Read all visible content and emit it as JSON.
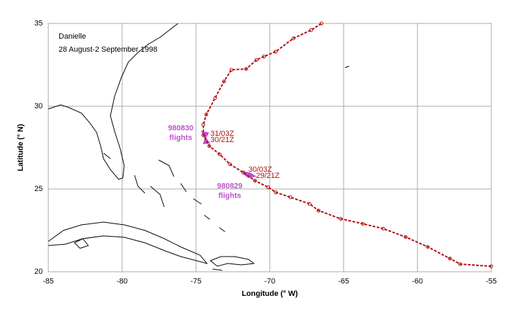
{
  "chart_data": {
    "type": "line",
    "title": "Danielle",
    "subtitle": "28 August-2 September 1998",
    "xlabel": "Longitude (° W)",
    "ylabel": "Latitude (° N)",
    "x": [
      -55.0,
      -57.1,
      -57.8,
      -59.3,
      -60.8,
      -62.3,
      -63.7,
      -65.2,
      -66.7,
      -67.3,
      -68.6,
      -69.6,
      -70.1,
      -71.0,
      -71.8,
      -72.7,
      -73.4,
      -74.1,
      -74.5,
      -74.5,
      -74.3,
      -73.7,
      -73.1,
      -72.6,
      -71.6,
      -70.9,
      -70.4,
      -69.6,
      -68.4,
      -67.2,
      -66.5
    ],
    "values": [
      20.33,
      20.46,
      20.8,
      21.5,
      22.1,
      22.6,
      22.9,
      23.2,
      23.7,
      24.1,
      24.5,
      24.8,
      25.1,
      25.5,
      26.0,
      26.5,
      27.1,
      27.6,
      28.25,
      28.9,
      29.5,
      30.5,
      31.5,
      32.2,
      32.25,
      32.8,
      33.0,
      33.3,
      34.1,
      34.6,
      35.0
    ],
    "color": "#b01010",
    "xlim": [
      -85,
      -55
    ],
    "ylim": [
      20,
      35
    ],
    "xticks": [
      -85,
      -80,
      -75,
      -70,
      -65,
      -60,
      -55
    ],
    "yticks": [
      20,
      25,
      30,
      35
    ],
    "grid": true,
    "annotations": [
      "980830",
      "flights",
      "980829",
      "flights",
      "31/03Z",
      "30/21Z",
      "30/03Z",
      "29/21Z"
    ]
  }
}
